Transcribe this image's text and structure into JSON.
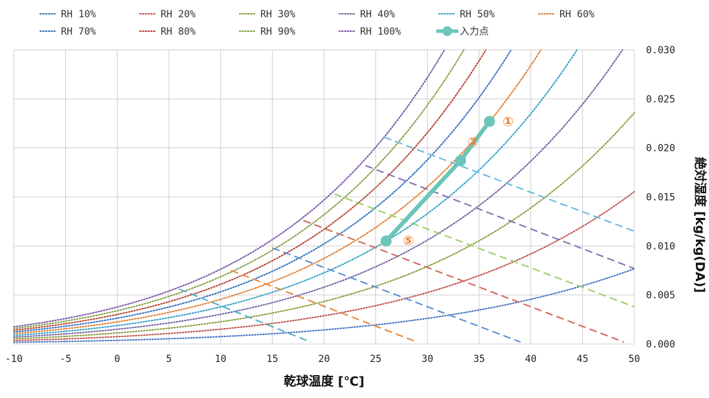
{
  "chart_data": {
    "type": "line",
    "xlabel": "乾球温度 [℃]",
    "ylabel": "絶対湿度 [kg/kg(DA)]",
    "xlim": [
      -10,
      50
    ],
    "ylim": [
      0,
      0.03
    ],
    "x_ticks": [
      "-10",
      "-5",
      "0",
      "5",
      "10",
      "15",
      "20",
      "25",
      "30",
      "35",
      "40",
      "45",
      "50"
    ],
    "y_ticks": [
      "0.000",
      "0.005",
      "0.010",
      "0.015",
      "0.020",
      "0.025",
      "0.030"
    ],
    "grid": true,
    "legend_position": "top",
    "rh_series": [
      {
        "name": "RH 10%",
        "rh": 10,
        "color": "#4472c4"
      },
      {
        "name": "RH 20%",
        "rh": 20,
        "color": "#c0504d"
      },
      {
        "name": "RH 30%",
        "rh": 30,
        "color": "#8a9a3c"
      },
      {
        "name": "RH 40%",
        "rh": 40,
        "color": "#7060a0"
      },
      {
        "name": "RH 50%",
        "rh": 50,
        "color": "#2fa0c8"
      },
      {
        "name": "RH 60%",
        "rh": 60,
        "color": "#e07b2c"
      },
      {
        "name": "RH 70%",
        "rh": 70,
        "color": "#2f6fbf"
      },
      {
        "name": "RH 80%",
        "rh": 80,
        "color": "#b8402e"
      },
      {
        "name": "RH 90%",
        "rh": 90,
        "color": "#80a040"
      },
      {
        "name": "RH 100%",
        "rh": 100,
        "color": "#7a55a8"
      }
    ],
    "enthalpy_lines": [
      {
        "x": [
          6,
          18.7
        ],
        "y": [
          0.0056,
          0.0002
        ],
        "color": "#4fb0c6"
      },
      {
        "x": [
          11,
          29
        ],
        "y": [
          0.0075,
          0.0002
        ],
        "color": "#e8883a"
      },
      {
        "x": [
          15,
          39
        ],
        "y": [
          0.0098,
          0.0002
        ],
        "color": "#5b8ed4"
      },
      {
        "x": [
          18,
          49
        ],
        "y": [
          0.0126,
          0.0002
        ],
        "color": "#d06858"
      },
      {
        "x": [
          21,
          50
        ],
        "y": [
          0.0153,
          0.0038
        ],
        "color": "#9ccf6a"
      },
      {
        "x": [
          24,
          50
        ],
        "y": [
          0.0182,
          0.0077
        ],
        "color": "#8a6fb0"
      },
      {
        "x": [
          25.8,
          50
        ],
        "y": [
          0.0211,
          0.0115
        ],
        "color": "#6ab8dc"
      }
    ],
    "series": [
      {
        "name": "入力点",
        "color": "#6cc5b8",
        "x": [
          36,
          33.2,
          26
        ],
        "y": [
          0.0227,
          0.0187,
          0.0105
        ],
        "point_labels": [
          "①",
          "②",
          "⑤"
        ],
        "label_color": "#e8803a"
      }
    ]
  }
}
